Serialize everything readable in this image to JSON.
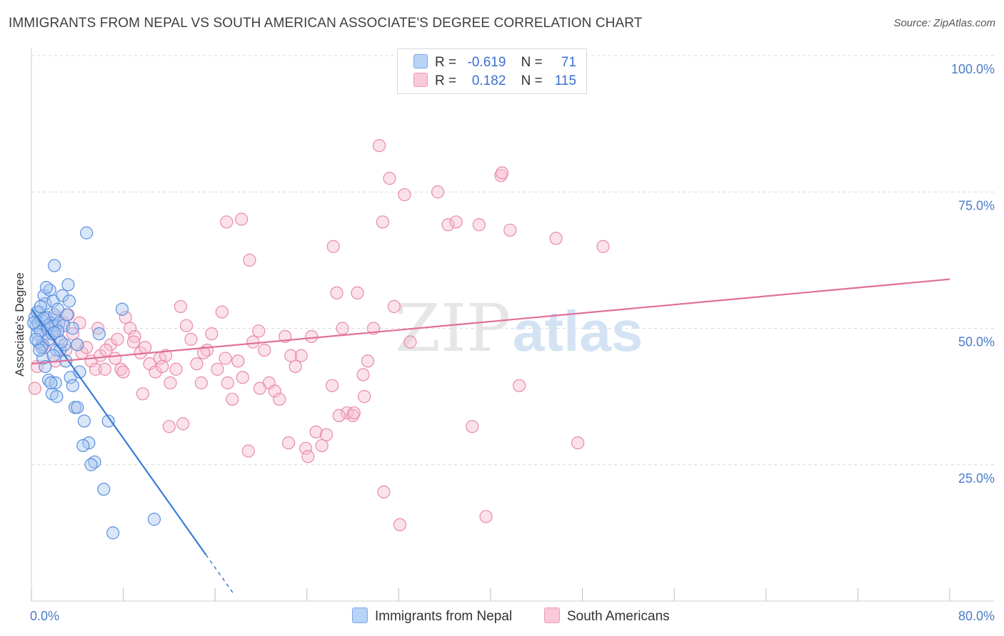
{
  "header": {
    "title": "IMMIGRANTS FROM NEPAL VS SOUTH AMERICAN ASSOCIATE'S DEGREE CORRELATION CHART",
    "source": "Source: ZipAtlas.com"
  },
  "legend": {
    "series1": {
      "r_label": "R =",
      "r_value": "-0.619",
      "n_label": "N =",
      "n_value": "71"
    },
    "series2": {
      "r_label": "R =",
      "r_value": "0.182",
      "n_label": "N =",
      "n_value": "115"
    }
  },
  "watermark": {
    "zip": "ZIP",
    "atlas": "atlas"
  },
  "colors": {
    "blue_fill": "#a8c8f0",
    "blue_stroke": "#5b8fe0",
    "blue_line": "#3a7bd5",
    "pink_fill": "#f7bfd0",
    "pink_stroke": "#e88aa8",
    "pink_line": "#e07098",
    "grid": "#d9d9d9",
    "tick": "#4a7cc9"
  },
  "chart_data": {
    "type": "scatter",
    "title": "IMMIGRANTS FROM NEPAL VS SOUTH AMERICAN ASSOCIATE'S DEGREE CORRELATION CHART",
    "xlabel": "",
    "ylabel": "Associate's Degree",
    "xlim": [
      0,
      80
    ],
    "ylim": [
      0,
      100
    ],
    "x_tick_labels": {
      "min": "0.0%",
      "max": "80.0%"
    },
    "y_tick_labels": [
      {
        "value": 100,
        "label": "100.0%"
      },
      {
        "value": 75,
        "label": "75.0%"
      },
      {
        "value": 50,
        "label": "50.0%"
      },
      {
        "value": 25,
        "label": "25.0%"
      }
    ],
    "series": [
      {
        "name": "Immigrants from Nepal",
        "color": "blue",
        "trend": {
          "x0": 0,
          "y0": 53.6,
          "x1": 15.2,
          "y1": 8.5,
          "dash_to_x": 17.7
        },
        "points": [
          [
            0.3,
            52
          ],
          [
            0.4,
            50.5
          ],
          [
            0.5,
            49
          ],
          [
            0.6,
            51
          ],
          [
            0.7,
            53
          ],
          [
            0.8,
            49.5
          ],
          [
            0.9,
            51.5
          ],
          [
            1.0,
            47
          ],
          [
            1.1,
            56
          ],
          [
            1.2,
            54.5
          ],
          [
            1.3,
            52
          ],
          [
            1.4,
            50
          ],
          [
            1.5,
            48
          ],
          [
            1.6,
            57
          ],
          [
            1.7,
            51
          ],
          [
            1.8,
            49
          ],
          [
            1.9,
            55
          ],
          [
            2.0,
            52.5
          ],
          [
            2.1,
            50.5
          ],
          [
            2.2,
            46
          ],
          [
            2.3,
            53.5
          ],
          [
            2.4,
            51
          ],
          [
            0.5,
            53
          ],
          [
            0.6,
            47.5
          ],
          [
            1.0,
            44.5
          ],
          [
            1.2,
            43
          ],
          [
            1.5,
            40.5
          ],
          [
            1.8,
            38
          ],
          [
            2.1,
            40
          ],
          [
            2.2,
            37.5
          ],
          [
            2.5,
            46
          ],
          [
            2.7,
            56
          ],
          [
            2.9,
            47
          ],
          [
            3.2,
            58
          ],
          [
            3.4,
            41
          ],
          [
            3.6,
            39.5
          ],
          [
            3.8,
            35.5
          ],
          [
            4.0,
            35.5
          ],
          [
            4.2,
            42
          ],
          [
            4.6,
            33
          ],
          [
            5.0,
            29
          ],
          [
            5.5,
            25.5
          ],
          [
            6.3,
            20.5
          ],
          [
            7.1,
            12.5
          ],
          [
            10.7,
            15
          ],
          [
            3.3,
            55
          ],
          [
            2.0,
            61.5
          ],
          [
            4.8,
            67.5
          ],
          [
            5.9,
            49
          ],
          [
            7.9,
            53.5
          ],
          [
            1.3,
            57.5
          ],
          [
            0.8,
            54
          ],
          [
            0.9,
            46.5
          ],
          [
            1.9,
            45
          ],
          [
            2.6,
            47.5
          ],
          [
            3.0,
            44
          ],
          [
            4.5,
            28.5
          ],
          [
            5.2,
            25
          ],
          [
            6.7,
            33
          ],
          [
            0.4,
            48
          ],
          [
            2.8,
            50.5
          ],
          [
            1.7,
            40
          ],
          [
            0.2,
            51
          ],
          [
            2.3,
            49.5
          ],
          [
            3.1,
            52.5
          ],
          [
            1.4,
            50.5
          ],
          [
            4.0,
            47
          ],
          [
            3.6,
            50
          ],
          [
            1.1,
            51.8
          ],
          [
            2.0,
            49.2
          ],
          [
            0.7,
            46
          ]
        ]
      },
      {
        "name": "South Americans",
        "color": "pink",
        "trend": {
          "x0": 0,
          "y0": 43.5,
          "x1": 80,
          "y1": 59
        },
        "points": [
          [
            0.3,
            39
          ],
          [
            0.5,
            43
          ],
          [
            0.9,
            47
          ],
          [
            1.3,
            49
          ],
          [
            1.7,
            50.5
          ],
          [
            2.0,
            52
          ],
          [
            2.4,
            48
          ],
          [
            2.8,
            51
          ],
          [
            3.2,
            52.5
          ],
          [
            3.6,
            49
          ],
          [
            4.0,
            47
          ],
          [
            4.4,
            45.5
          ],
          [
            4.8,
            46.5
          ],
          [
            5.2,
            44
          ],
          [
            5.6,
            42.5
          ],
          [
            6.0,
            45
          ],
          [
            6.4,
            42.5
          ],
          [
            6.9,
            47
          ],
          [
            7.3,
            44.5
          ],
          [
            7.8,
            42.5
          ],
          [
            8.2,
            52
          ],
          [
            8.6,
            50
          ],
          [
            9.0,
            48.5
          ],
          [
            9.5,
            45.5
          ],
          [
            9.9,
            46.5
          ],
          [
            10.3,
            43.5
          ],
          [
            10.8,
            42
          ],
          [
            11.2,
            44.5
          ],
          [
            11.7,
            45
          ],
          [
            12.1,
            40
          ],
          [
            12.6,
            42.5
          ],
          [
            13.0,
            54
          ],
          [
            13.5,
            50.5
          ],
          [
            13.9,
            48
          ],
          [
            14.4,
            43.5
          ],
          [
            14.8,
            40
          ],
          [
            15.3,
            46
          ],
          [
            15.7,
            49
          ],
          [
            16.2,
            42.5
          ],
          [
            16.6,
            53
          ],
          [
            17.1,
            40
          ],
          [
            17.5,
            37
          ],
          [
            18.0,
            44
          ],
          [
            18.4,
            41
          ],
          [
            18.9,
            27.5
          ],
          [
            19.3,
            47.5
          ],
          [
            19.8,
            49.5
          ],
          [
            20.3,
            46
          ],
          [
            20.7,
            40
          ],
          [
            21.2,
            38.5
          ],
          [
            21.6,
            37
          ],
          [
            22.1,
            48.5
          ],
          [
            22.6,
            45
          ],
          [
            23.0,
            43
          ],
          [
            23.5,
            45
          ],
          [
            23.9,
            28
          ],
          [
            24.4,
            48.5
          ],
          [
            24.8,
            31
          ],
          [
            25.3,
            28.5
          ],
          [
            25.7,
            30.5
          ],
          [
            26.2,
            39.5
          ],
          [
            26.6,
            56.5
          ],
          [
            27.1,
            50
          ],
          [
            27.5,
            34.5
          ],
          [
            28.0,
            34
          ],
          [
            28.4,
            56.5
          ],
          [
            28.9,
            41.5
          ],
          [
            29.3,
            44
          ],
          [
            29.8,
            50
          ],
          [
            30.3,
            83.5
          ],
          [
            30.7,
            20
          ],
          [
            31.2,
            77.5
          ],
          [
            31.6,
            54
          ],
          [
            32.1,
            14
          ],
          [
            32.5,
            74.5
          ],
          [
            33.0,
            47.5
          ],
          [
            35.4,
            75
          ],
          [
            36.3,
            69
          ],
          [
            37.0,
            69.5
          ],
          [
            38.4,
            32
          ],
          [
            39.0,
            69
          ],
          [
            39.6,
            15.5
          ],
          [
            40.9,
            78
          ],
          [
            41.0,
            78.5
          ],
          [
            41.7,
            68
          ],
          [
            42.5,
            39.5
          ],
          [
            45.7,
            66.5
          ],
          [
            47.6,
            29
          ],
          [
            49.8,
            65
          ],
          [
            19.0,
            62.5
          ],
          [
            18.3,
            70
          ],
          [
            17.0,
            69.5
          ],
          [
            26.3,
            65
          ],
          [
            30.6,
            69.5
          ],
          [
            12.0,
            32
          ],
          [
            13.2,
            32.5
          ],
          [
            8.9,
            47.5
          ],
          [
            6.5,
            46
          ],
          [
            5.8,
            50
          ],
          [
            4.2,
            51
          ],
          [
            3.0,
            46
          ],
          [
            2.1,
            44
          ],
          [
            1.1,
            46.5
          ],
          [
            7.5,
            48
          ],
          [
            9.7,
            38
          ],
          [
            11.4,
            43
          ],
          [
            15.0,
            45.5
          ],
          [
            16.9,
            44.5
          ],
          [
            19.9,
            39
          ],
          [
            22.4,
            29
          ],
          [
            24.1,
            26.5
          ],
          [
            26.8,
            34
          ],
          [
            28.1,
            34.5
          ],
          [
            29.0,
            37.5
          ],
          [
            8.0,
            42
          ]
        ]
      }
    ]
  },
  "bottom_legend": {
    "series1_label": "Immigrants from Nepal",
    "series2_label": "South Americans"
  }
}
